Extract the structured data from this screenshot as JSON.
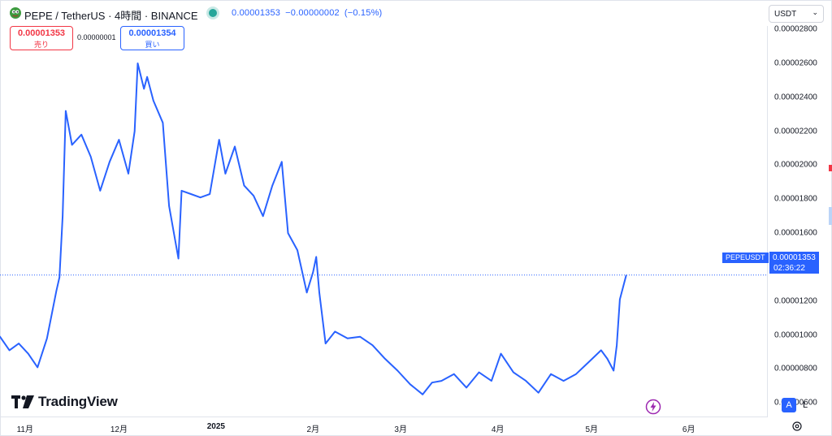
{
  "header": {
    "symbol_title": "PEPE / TetherUS · 4時間 · BINANCE",
    "quote": {
      "price": "0.00001353",
      "change": "−0.00000002",
      "change_pct": "(−0.15%)"
    }
  },
  "trade": {
    "sell_price": "0.00001353",
    "sell_label": "売り",
    "spread": "0.00000001",
    "buy_price": "0.00001354",
    "buy_label": "買い"
  },
  "currency_select": {
    "value": "USDT"
  },
  "price_tag": {
    "symbol": "PEPEUSDT",
    "price": "0.00001353",
    "countdown": "02:36:22"
  },
  "logo_text": "TradingView",
  "scale_buttons": {
    "auto": "A",
    "log": "L"
  },
  "colors": {
    "line": "#2962ff",
    "sell": "#f23645",
    "buy": "#2962ff",
    "live": "#26a69a",
    "brand": "#131722"
  },
  "icons": {
    "symbol": "pepe-logo-icon",
    "live": "live-status-dot-icon",
    "flash": "lightning-icon",
    "settings": "gear-icon",
    "currency": "chevron-down-icon"
  },
  "chart_data": {
    "type": "line",
    "x_ticks": [
      "11月",
      "12月",
      "2025",
      "2月",
      "3月",
      "4月",
      "5月",
      "6月"
    ],
    "y_ticks": [
      "0.00002800",
      "0.00002600",
      "0.00002400",
      "0.00002200",
      "0.00002000",
      "0.00001800",
      "0.00001600",
      "0.00001400",
      "0.00001200",
      "0.00001000",
      "0.00000800",
      "0.00000600"
    ],
    "ylim": [
      5.2e-06,
      2.82e-05
    ],
    "xlim": [
      "2024-10-24",
      "2025-06-26"
    ],
    "last_price": 1.353e-05,
    "grid": false,
    "series": [
      {
        "x": [
          "2024-10-24",
          "2024-10-27",
          "2024-10-30",
          "2024-11-02",
          "2024-11-05",
          "2024-11-08",
          "2024-11-11",
          "2024-11-12",
          "2024-11-13",
          "2024-11-14",
          "2024-11-16",
          "2024-11-19",
          "2024-11-22",
          "2024-11-25",
          "2024-11-28",
          "2024-12-01",
          "2024-12-04",
          "2024-12-06",
          "2024-12-07",
          "2024-12-09",
          "2024-12-10",
          "2024-12-12",
          "2024-12-15",
          "2024-12-17",
          "2024-12-20",
          "2024-12-21",
          "2024-12-24",
          "2024-12-27",
          "2024-12-30",
          "2025-01-02",
          "2025-01-04",
          "2025-01-07",
          "2025-01-10",
          "2025-01-13",
          "2025-01-16",
          "2025-01-19",
          "2025-01-22",
          "2025-01-24",
          "2025-01-27",
          "2025-01-30",
          "2025-02-01",
          "2025-02-02",
          "2025-02-03",
          "2025-02-05",
          "2025-02-08",
          "2025-02-12",
          "2025-02-16",
          "2025-02-20",
          "2025-02-24",
          "2025-02-28",
          "2025-03-04",
          "2025-03-08",
          "2025-03-11",
          "2025-03-14",
          "2025-03-18",
          "2025-03-22",
          "2025-03-26",
          "2025-03-30",
          "2025-04-02",
          "2025-04-06",
          "2025-04-10",
          "2025-04-14",
          "2025-04-18",
          "2025-04-22",
          "2025-04-26",
          "2025-04-30",
          "2025-05-04",
          "2025-05-06",
          "2025-05-08",
          "2025-05-09",
          "2025-05-10",
          "2025-05-12"
        ],
        "y": [
          9.9e-06,
          9.1e-06,
          9.5e-06,
          8.9e-06,
          8.1e-06,
          9.8e-06,
          1.26e-05,
          1.34e-05,
          1.7e-05,
          2.32e-05,
          2.12e-05,
          2.18e-05,
          2.05e-05,
          1.85e-05,
          2.02e-05,
          2.15e-05,
          1.95e-05,
          2.2e-05,
          2.6e-05,
          2.45e-05,
          2.52e-05,
          2.38e-05,
          2.25e-05,
          1.76e-05,
          1.45e-05,
          1.85e-05,
          1.83e-05,
          1.81e-05,
          1.83e-05,
          2.15e-05,
          1.95e-05,
          2.11e-05,
          1.88e-05,
          1.82e-05,
          1.7e-05,
          1.88e-05,
          2.02e-05,
          1.6e-05,
          1.5e-05,
          1.25e-05,
          1.37e-05,
          1.46e-05,
          1.25e-05,
          9.5e-06,
          1.02e-05,
          9.8e-06,
          9.9e-06,
          9.4e-06,
          8.6e-06,
          7.9e-06,
          7.1e-06,
          6.5e-06,
          7.2e-06,
          7.3e-06,
          7.7e-06,
          6.9e-06,
          7.8e-06,
          7.3e-06,
          8.9e-06,
          7.8e-06,
          7.3e-06,
          6.6e-06,
          7.7e-06,
          7.3e-06,
          7.7e-06,
          8.4e-06,
          9.1e-06,
          8.6e-06,
          7.9e-06,
          9.4e-06,
          1.21e-05,
          1.35e-05
        ]
      }
    ]
  }
}
